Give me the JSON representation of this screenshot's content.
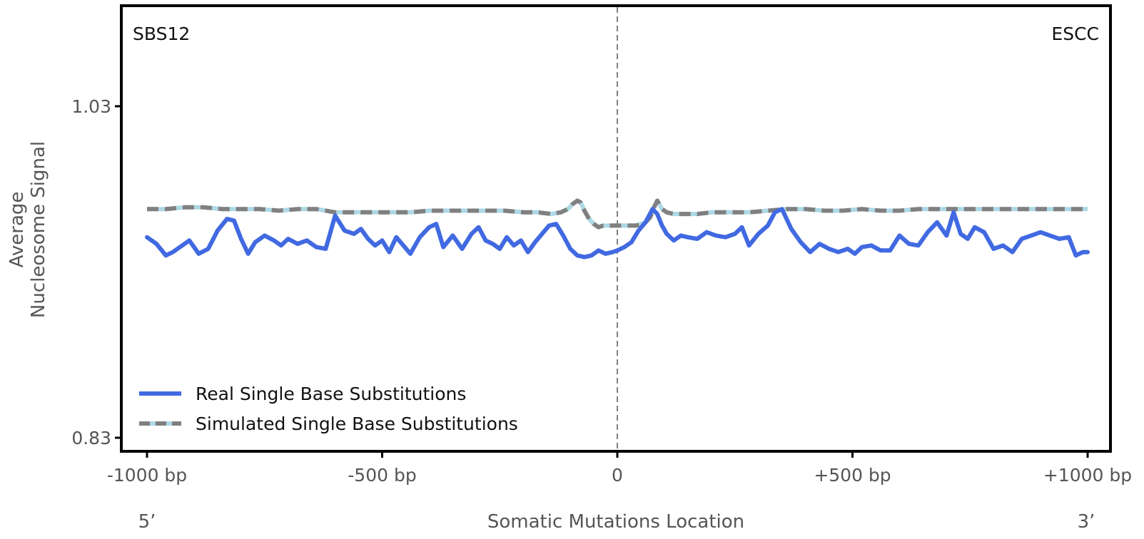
{
  "chart_data": {
    "type": "line",
    "signature_label": "SBS12",
    "cancer_label": "ESCC",
    "ylabel_line1": "Average",
    "ylabel_line2": "Nucleosome Signal",
    "xlabel": "Somatic Mutations Location",
    "five_prime": "5’",
    "three_prime": "3’",
    "xlim": [
      -1000,
      1000
    ],
    "ylim": [
      0.83,
      1.03
    ],
    "x_ticks": [
      {
        "value": -1000,
        "label": "-1000 bp"
      },
      {
        "value": -500,
        "label": "-500 bp"
      },
      {
        "value": 0,
        "label": "0"
      },
      {
        "value": 500,
        "label": "+500 bp"
      },
      {
        "value": 1000,
        "label": "+1000 bp"
      }
    ],
    "y_ticks": [
      {
        "value": 1.03,
        "label": "1.03"
      },
      {
        "value": 0.83,
        "label": "0.83"
      }
    ],
    "vline_at": 0,
    "legend_position": "lower-left",
    "series": [
      {
        "name": "Real Single Base Substitutions",
        "color": "#4169e1",
        "style": "solid",
        "x": [
          -1000,
          -980,
          -960,
          -945,
          -930,
          -910,
          -890,
          -870,
          -850,
          -830,
          -815,
          -800,
          -785,
          -770,
          -750,
          -730,
          -715,
          -700,
          -680,
          -660,
          -640,
          -620,
          -600,
          -580,
          -560,
          -545,
          -530,
          -515,
          -500,
          -485,
          -470,
          -455,
          -440,
          -420,
          -400,
          -385,
          -370,
          -350,
          -330,
          -310,
          -295,
          -280,
          -265,
          -250,
          -235,
          -220,
          -205,
          -190,
          -175,
          -160,
          -145,
          -130,
          -115,
          -100,
          -85,
          -70,
          -55,
          -40,
          -25,
          -10,
          0,
          15,
          30,
          45,
          60,
          75,
          85,
          95,
          105,
          120,
          135,
          150,
          170,
          190,
          210,
          230,
          250,
          265,
          280,
          300,
          320,
          335,
          350,
          370,
          390,
          410,
          430,
          450,
          470,
          490,
          505,
          520,
          540,
          560,
          580,
          600,
          620,
          640,
          660,
          680,
          700,
          715,
          730,
          745,
          760,
          780,
          800,
          820,
          840,
          860,
          880,
          900,
          920,
          940,
          960,
          975,
          990,
          1000
        ],
        "y": [
          0.951,
          0.947,
          0.94,
          0.942,
          0.945,
          0.949,
          0.941,
          0.944,
          0.955,
          0.962,
          0.961,
          0.95,
          0.941,
          0.948,
          0.952,
          0.949,
          0.946,
          0.95,
          0.947,
          0.949,
          0.945,
          0.944,
          0.964,
          0.955,
          0.953,
          0.956,
          0.95,
          0.946,
          0.949,
          0.942,
          0.951,
          0.946,
          0.941,
          0.951,
          0.957,
          0.959,
          0.945,
          0.952,
          0.944,
          0.953,
          0.957,
          0.949,
          0.947,
          0.944,
          0.951,
          0.946,
          0.949,
          0.942,
          0.948,
          0.953,
          0.958,
          0.959,
          0.952,
          0.944,
          0.94,
          0.939,
          0.94,
          0.943,
          0.941,
          0.942,
          0.943,
          0.945,
          0.948,
          0.955,
          0.96,
          0.968,
          0.965,
          0.958,
          0.953,
          0.949,
          0.952,
          0.951,
          0.95,
          0.954,
          0.952,
          0.951,
          0.953,
          0.957,
          0.946,
          0.953,
          0.958,
          0.966,
          0.968,
          0.956,
          0.948,
          0.942,
          0.947,
          0.944,
          0.942,
          0.944,
          0.941,
          0.945,
          0.946,
          0.943,
          0.943,
          0.952,
          0.947,
          0.946,
          0.954,
          0.96,
          0.952,
          0.966,
          0.953,
          0.95,
          0.957,
          0.954,
          0.944,
          0.946,
          0.942,
          0.95,
          0.952,
          0.954,
          0.952,
          0.95,
          0.951,
          0.94,
          0.942,
          0.942
        ]
      },
      {
        "name": "Simulated Single Base Substitutions",
        "color": "#808080",
        "underlay_color": "#add8e6",
        "style": "dashed",
        "x": [
          -1000,
          -960,
          -920,
          -880,
          -840,
          -800,
          -760,
          -720,
          -680,
          -640,
          -600,
          -560,
          -520,
          -480,
          -440,
          -400,
          -360,
          -320,
          -280,
          -240,
          -200,
          -170,
          -140,
          -120,
          -105,
          -95,
          -85,
          -78,
          -70,
          -60,
          -50,
          -40,
          -30,
          -20,
          -10,
          0,
          10,
          20,
          30,
          40,
          50,
          60,
          70,
          78,
          85,
          95,
          105,
          120,
          140,
          170,
          200,
          240,
          280,
          320,
          360,
          400,
          440,
          480,
          520,
          560,
          600,
          640,
          680,
          720,
          760,
          800,
          840,
          880,
          920,
          960,
          1000
        ],
        "y": [
          0.968,
          0.968,
          0.969,
          0.969,
          0.968,
          0.968,
          0.968,
          0.967,
          0.968,
          0.968,
          0.966,
          0.966,
          0.966,
          0.966,
          0.966,
          0.967,
          0.967,
          0.967,
          0.967,
          0.967,
          0.966,
          0.966,
          0.965,
          0.966,
          0.968,
          0.971,
          0.973,
          0.972,
          0.967,
          0.962,
          0.959,
          0.957,
          0.958,
          0.958,
          0.958,
          0.958,
          0.958,
          0.958,
          0.958,
          0.958,
          0.959,
          0.96,
          0.963,
          0.969,
          0.973,
          0.968,
          0.966,
          0.965,
          0.965,
          0.965,
          0.966,
          0.966,
          0.966,
          0.967,
          0.968,
          0.968,
          0.967,
          0.967,
          0.968,
          0.967,
          0.967,
          0.968,
          0.968,
          0.968,
          0.968,
          0.968,
          0.968,
          0.968,
          0.968,
          0.968,
          0.968
        ]
      }
    ]
  }
}
